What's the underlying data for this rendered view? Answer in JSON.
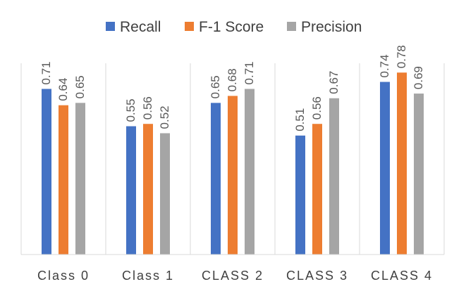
{
  "chart_data": {
    "type": "bar",
    "title": "",
    "xlabel": "",
    "ylabel": "",
    "ylim": [
      0,
      0.85
    ],
    "grid": false,
    "legend_position": "top",
    "categories": [
      "Class 0",
      "Class 1",
      "CLASS 2",
      "CLASS 3",
      "CLASS 4"
    ],
    "series": [
      {
        "name": "Recall",
        "color": "#4472C4",
        "values": [
          0.71,
          0.55,
          0.65,
          0.51,
          0.74
        ]
      },
      {
        "name": "F-1 Score",
        "color": "#ED7D31",
        "values": [
          0.64,
          0.56,
          0.68,
          0.56,
          0.78
        ]
      },
      {
        "name": "Precision",
        "color": "#A5A5A5",
        "values": [
          0.65,
          0.52,
          0.71,
          0.67,
          0.69
        ]
      }
    ]
  }
}
